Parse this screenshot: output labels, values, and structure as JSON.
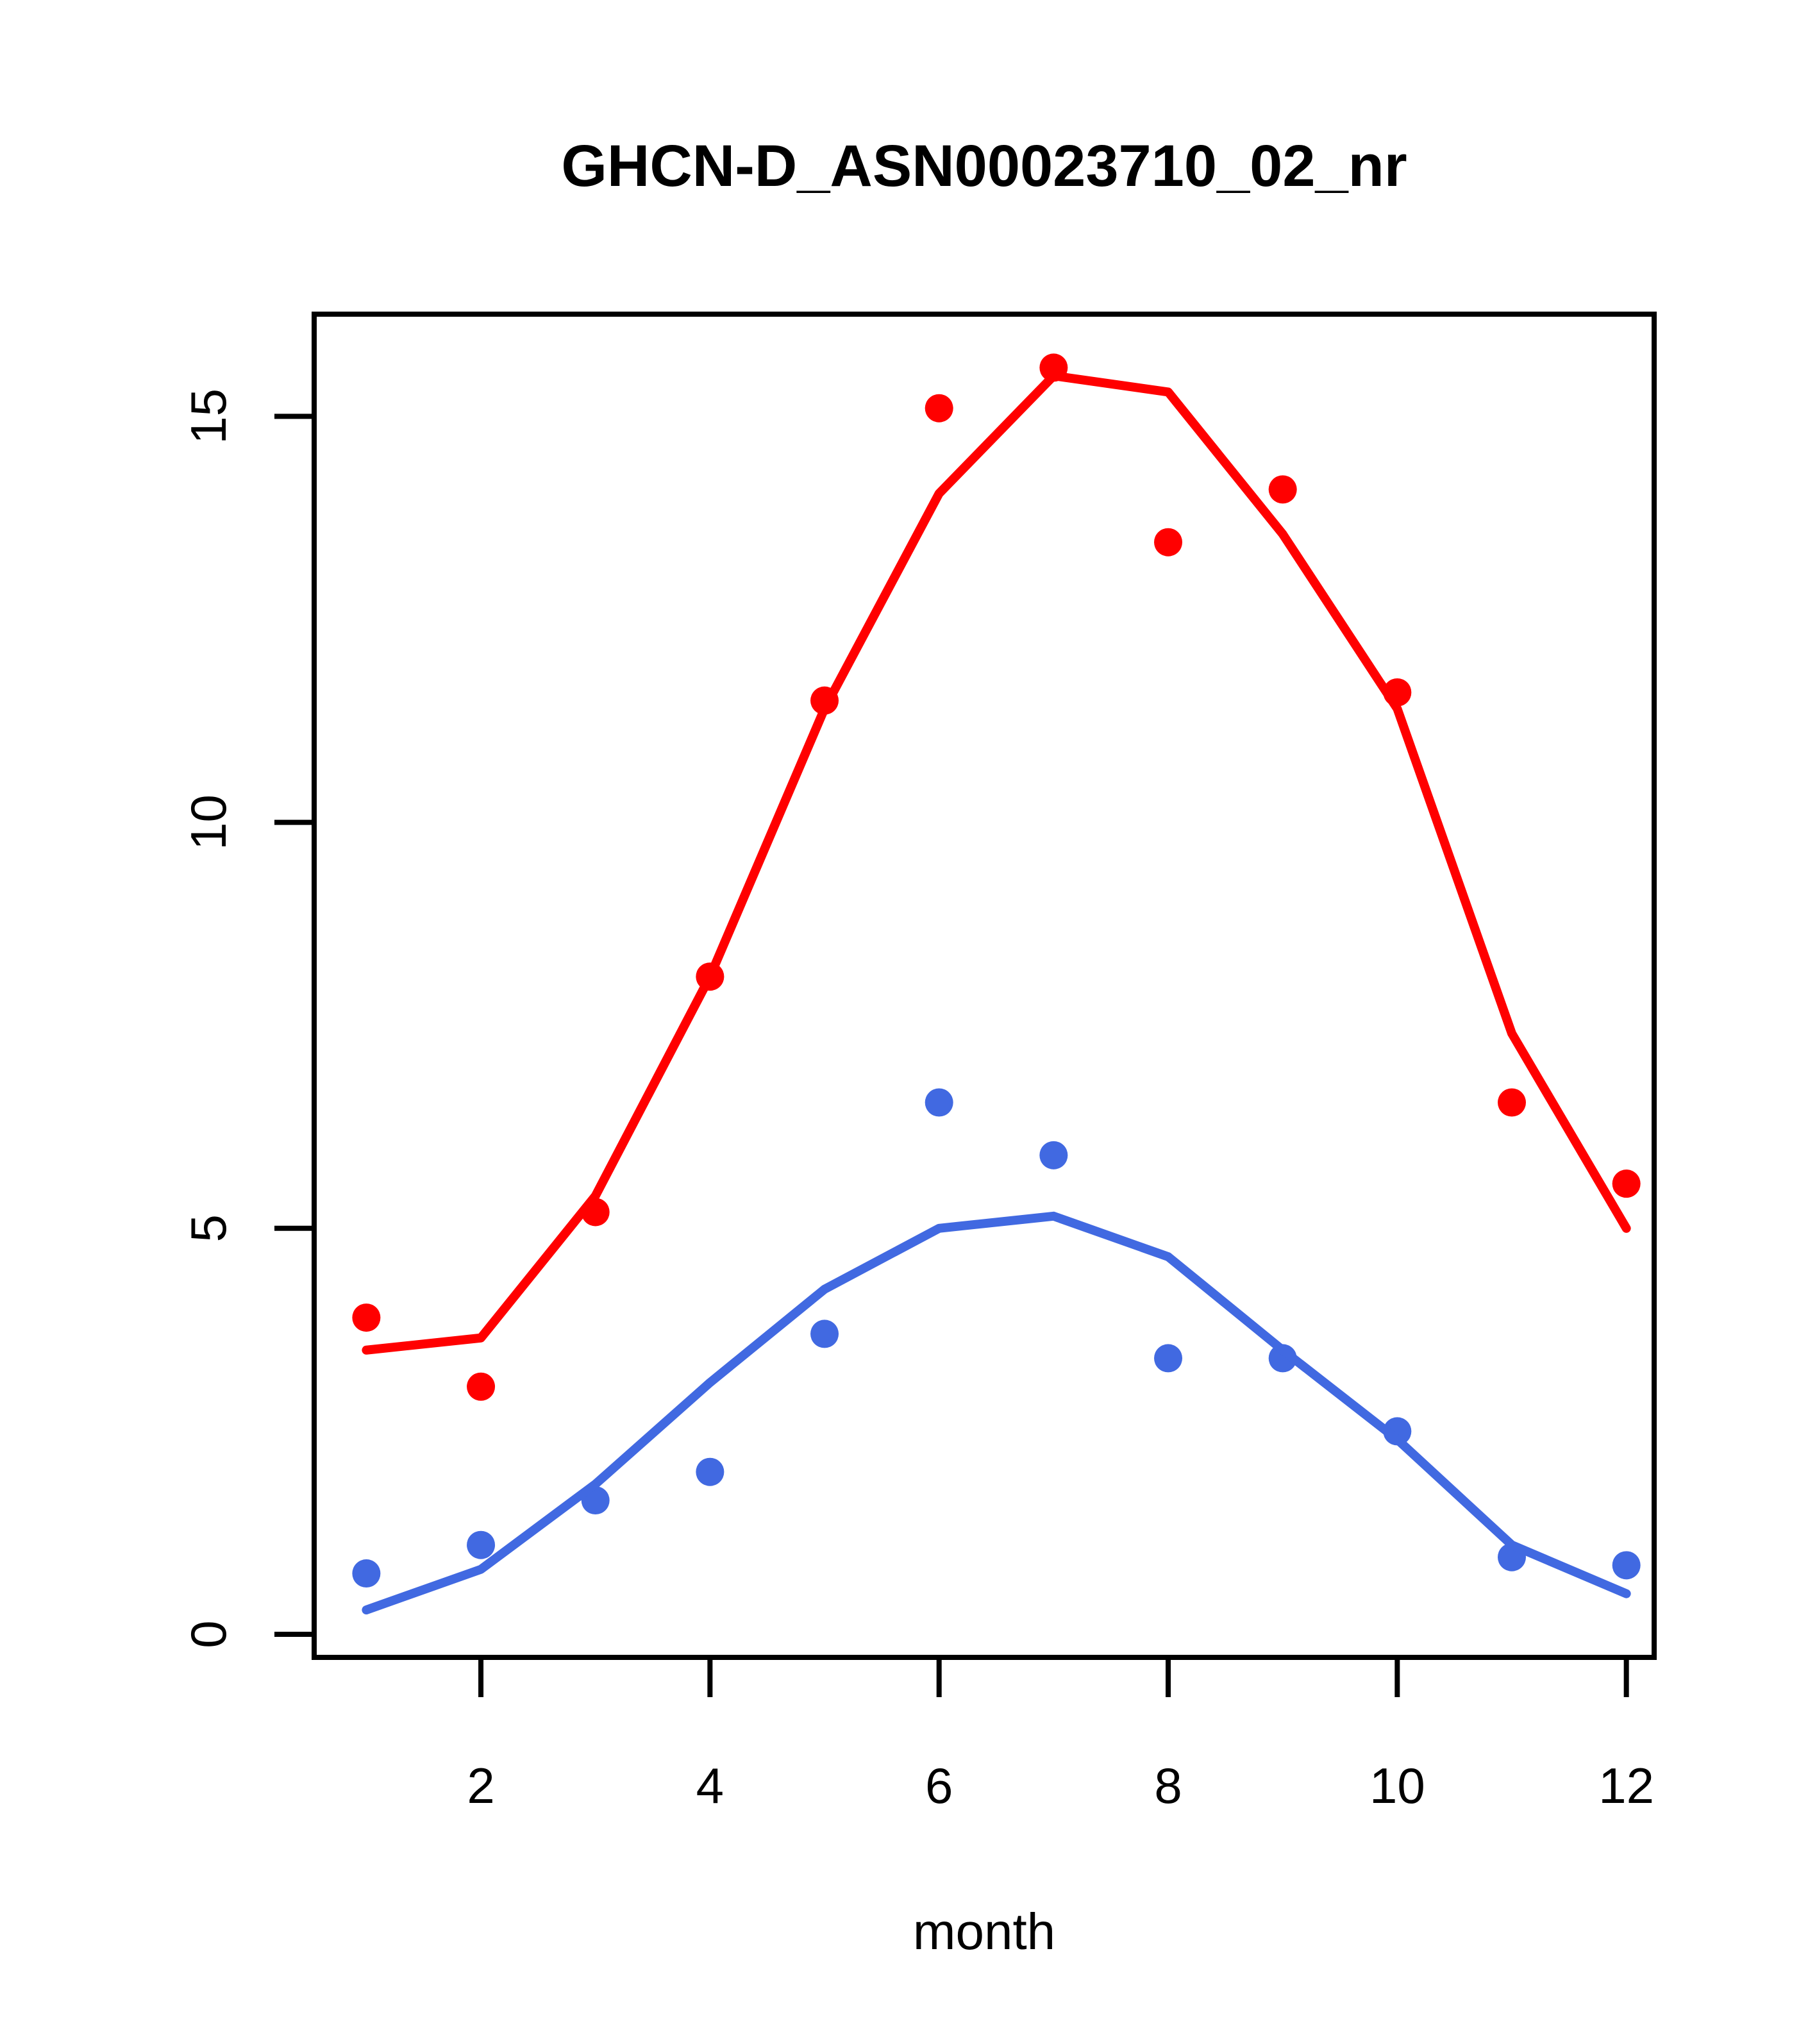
{
  "chart_data": {
    "type": "scatter",
    "title": "GHCN-D_ASN00023710_02_nr",
    "xlabel": "month",
    "ylabel": "",
    "x": [
      1,
      2,
      3,
      4,
      5,
      6,
      7,
      8,
      9,
      10,
      11,
      12
    ],
    "xticks": [
      2,
      4,
      6,
      8,
      10,
      12
    ],
    "yticks": [
      0,
      5,
      10,
      15
    ],
    "xlim": [
      0.55,
      12.25
    ],
    "ylim": [
      -0.3,
      16.3
    ],
    "grid": false,
    "legend": "none",
    "colors": {
      "red": "#FF0000",
      "blue": "#4169E1",
      "axis": "#000000",
      "background": "#FFFFFF"
    },
    "series": [
      {
        "name": "red-points",
        "kind": "points",
        "color": "#FF0000",
        "values": [
          3.9,
          3.05,
          5.2,
          8.1,
          11.5,
          15.1,
          15.6,
          13.45,
          14.1,
          11.6,
          6.55,
          5.55
        ]
      },
      {
        "name": "red-fitted-line",
        "kind": "line",
        "color": "#FF0000",
        "values": [
          3.5,
          3.65,
          5.4,
          8.1,
          11.4,
          14.05,
          15.5,
          15.3,
          13.55,
          11.4,
          7.4,
          5.0
        ]
      },
      {
        "name": "blue-points",
        "kind": "points",
        "color": "#4169E1",
        "values": [
          0.75,
          1.1,
          1.65,
          2.0,
          3.7,
          6.55,
          5.9,
          3.4,
          3.4,
          2.5,
          0.95,
          0.85
        ]
      },
      {
        "name": "blue-fitted-line",
        "kind": "line",
        "color": "#4169E1",
        "values": [
          0.3,
          0.8,
          1.85,
          3.1,
          4.25,
          5.0,
          5.15,
          4.65,
          3.5,
          2.4,
          1.1,
          0.5
        ]
      }
    ]
  }
}
